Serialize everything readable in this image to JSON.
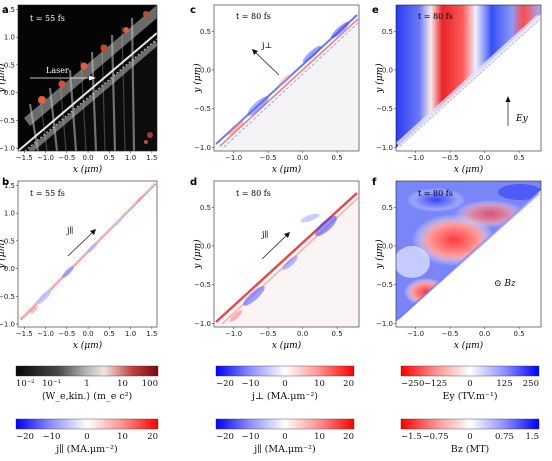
{
  "panels": [
    {
      "id": "a",
      "letter": "a",
      "time": "t = 55 fs",
      "annotation": "Laser",
      "xlabel": "x (μm)",
      "ylabel": "y (μm)",
      "xticks": [
        "−1.5",
        "−1.0",
        "−0.5",
        "0.0",
        "0.5",
        "1.0",
        "1.5"
      ],
      "yticks": [
        "1.5",
        "1.0",
        "0.5",
        "0.0",
        "−0.5",
        "−1.0"
      ]
    },
    {
      "id": "b",
      "letter": "b",
      "time": "t = 55 fs",
      "annotation": "j∥",
      "xlabel": "x (μm)",
      "ylabel": "y (μm)",
      "xticks": [
        "−1.5",
        "−1.0",
        "−0.5",
        "0.0",
        "0.5",
        "1.0",
        "1.5"
      ],
      "yticks": [
        "1.5",
        "1.0",
        "0.5",
        "0.0",
        "−0.5",
        "−1.0"
      ]
    },
    {
      "id": "c",
      "letter": "c",
      "time": "t = 80 fs",
      "annotation": "j⊥",
      "xlabel": "x (μm)",
      "ylabel": "y (μm)",
      "xticks": [
        "−1.0",
        "−0.5",
        "0.0",
        "0.5"
      ],
      "yticks": [
        "0.5",
        "0.0",
        "−0.5",
        "−1.0"
      ]
    },
    {
      "id": "d",
      "letter": "d",
      "time": "t = 80 fs",
      "annotation": "j∥",
      "xlabel": "x (μm)",
      "ylabel": "y (μm)",
      "xticks": [
        "−1.0",
        "−0.5",
        "0.0",
        "0.5"
      ],
      "yticks": [
        "0.5",
        "0.0",
        "−0.5",
        "−1.0"
      ]
    },
    {
      "id": "e",
      "letter": "e",
      "time": "t = 80 fs",
      "annotation": "Ey",
      "xlabel": "x (μm)",
      "ylabel": "y (μm)",
      "xticks": [
        "−1.0",
        "−0.5",
        "0.0",
        "0.5"
      ],
      "yticks": [
        "0.5",
        "0.0",
        "−0.5",
        "−1.0"
      ]
    },
    {
      "id": "f",
      "letter": "f",
      "time": "t = 80 fs",
      "annotation": "⊙ Bz",
      "xlabel": "x (μm)",
      "ylabel": "y (μm)",
      "xticks": [
        "−1.0",
        "−0.5",
        "0.0",
        "0.5"
      ],
      "yticks": [
        "0.5",
        "0.0",
        "−0.5",
        "−1.0"
      ]
    }
  ],
  "colorbars": [
    {
      "id": "energy",
      "ticks": [
        "10⁻²",
        "10⁻¹",
        "1",
        "10",
        "100"
      ],
      "label": "⟨W_e,kin.⟩ (m_e c²)",
      "colors": [
        "#050505",
        "#4a4a4a",
        "#b8b8b8",
        "#f2e4e4",
        "#c04040",
        "#7a0a0a"
      ]
    },
    {
      "id": "jpar-left",
      "ticks": [
        "−20",
        "−10",
        "0",
        "10",
        "20"
      ],
      "label": "j∥ (MA.μm⁻²)",
      "colors": [
        "#0000ff",
        "#8f8fff",
        "#ffffff",
        "#ff8f8f",
        "#ff0000"
      ]
    },
    {
      "id": "jperp",
      "ticks": [
        "−20",
        "−10",
        "0",
        "10",
        "20"
      ],
      "label": "j⊥ (MA.μm⁻²)",
      "colors": [
        "#0000ff",
        "#8f8fff",
        "#ffffff",
        "#ff8f8f",
        "#ff0000"
      ]
    },
    {
      "id": "jpar-mid",
      "ticks": [
        "−20",
        "−10",
        "0",
        "10",
        "20"
      ],
      "label": "j∥ (MA.μm⁻²)",
      "colors": [
        "#0000ff",
        "#8f8fff",
        "#ffffff",
        "#ff8f8f",
        "#ff0000"
      ]
    },
    {
      "id": "ey",
      "ticks": [
        "−250",
        "−125",
        "0",
        "125",
        "250"
      ],
      "label": "Ey (TV.m⁻¹)",
      "colors": [
        "#ff0000",
        "#ff8f8f",
        "#ffffff",
        "#8f8fff",
        "#0000ff"
      ]
    },
    {
      "id": "bz",
      "ticks": [
        "−1.5",
        "−0.75",
        "0",
        "0.75",
        "1.5"
      ],
      "label": "Bz (MT)",
      "colors": [
        "#ff0000",
        "#ff8f8f",
        "#ffffff",
        "#8f8fff",
        "#0000ff"
      ]
    }
  ]
}
